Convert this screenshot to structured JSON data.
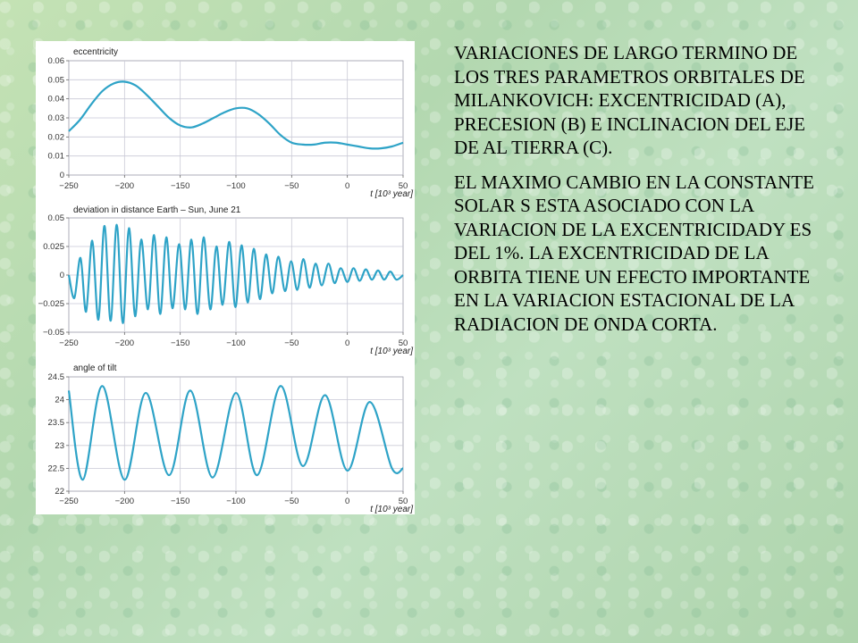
{
  "paragraphs": [
    "VARIACIONES DE LARGO TERMINO DE LOS TRES PARAMETROS ORBITALES DE MILANKOVICH: EXCENTRICIDAD (A), PRECESION (B) E INCLINACION DEL EJE DE AL TIERRA (C).",
    "EL MAXIMO CAMBIO EN LA CONSTANTE SOLAR S ESTA ASOCIADO CON LA VARIACION DE LA EXCENTRICIDADY ES DEL 1%. LA EXCENTRICIDAD DE LA ORBITA TIENE UN EFECTO IMPORTANTE EN LA VARIACION ESTACIONAL DE LA RADIACION DE ONDA CORTA."
  ],
  "chart_data": [
    {
      "type": "line",
      "title": "eccentricity",
      "xlabel": "t [10³ year]",
      "xlim": [
        -250,
        50
      ],
      "x_ticks": [
        "−250",
        "−200",
        "−150",
        "−100",
        "−50",
        "0",
        "50"
      ],
      "ylim": [
        0,
        0.06
      ],
      "y_ticks": [
        "0.06",
        "0.05",
        "0.04",
        "0.03",
        "0.02",
        "0.01",
        "0"
      ],
      "grid": true,
      "color": "#2ea3c7",
      "x": [
        -250,
        -240,
        -230,
        -220,
        -210,
        -200,
        -190,
        -180,
        -170,
        -160,
        -150,
        -140,
        -130,
        -120,
        -110,
        -100,
        -90,
        -80,
        -70,
        -60,
        -50,
        -40,
        -30,
        -20,
        -10,
        0,
        10,
        20,
        30,
        40,
        50
      ],
      "values": [
        0.023,
        0.029,
        0.037,
        0.044,
        0.048,
        0.049,
        0.047,
        0.042,
        0.036,
        0.03,
        0.026,
        0.025,
        0.027,
        0.03,
        0.033,
        0.035,
        0.035,
        0.032,
        0.027,
        0.021,
        0.017,
        0.016,
        0.016,
        0.017,
        0.017,
        0.016,
        0.015,
        0.014,
        0.014,
        0.015,
        0.017
      ]
    },
    {
      "type": "line",
      "title": "deviation in distance Earth – Sun, June 21",
      "xlabel": "t [10³ year]",
      "xlim": [
        -250,
        50
      ],
      "x_ticks": [
        "−250",
        "−200",
        "−150",
        "−100",
        "−50",
        "0",
        "50"
      ],
      "ylim": [
        -0.05,
        0.05
      ],
      "y_ticks": [
        "0.05",
        "0.025",
        "0",
        "−0.025",
        "−0.05"
      ],
      "grid": true,
      "color": "#2ea3c7",
      "x": [
        -250,
        -245,
        -239.5,
        -234.5,
        -229,
        -223.5,
        -218,
        -212.5,
        -207,
        -201.5,
        -196,
        -190.5,
        -185,
        -179,
        -173.5,
        -168,
        -162.5,
        -157,
        -151,
        -145.5,
        -140,
        -134.5,
        -129,
        -123,
        -117.5,
        -112,
        -106,
        -100.5,
        -95,
        -89.5,
        -84,
        -78.5,
        -73,
        -67.5,
        -62,
        -56,
        -50.5,
        -45,
        -39.5,
        -34,
        -28.5,
        -23,
        -17,
        -11.5,
        -6,
        0,
        5.5,
        11,
        16.5,
        22,
        27.5,
        33,
        38.5,
        44,
        50
      ],
      "values": [
        0,
        -0.02,
        0.015,
        -0.032,
        0.03,
        -0.039,
        0.043,
        -0.04,
        0.044,
        -0.042,
        0.041,
        -0.036,
        0.031,
        -0.03,
        0.035,
        -0.034,
        0.033,
        -0.029,
        0.027,
        -0.03,
        0.031,
        -0.034,
        0.033,
        -0.03,
        0.025,
        -0.026,
        0.029,
        -0.028,
        0.026,
        -0.024,
        0.023,
        -0.021,
        0.018,
        -0.016,
        0.016,
        -0.014,
        0.012,
        -0.013,
        0.014,
        -0.011,
        0.01,
        -0.009,
        0.01,
        -0.007,
        0.006,
        -0.006,
        0.006,
        -0.005,
        0.005,
        -0.004,
        0.004,
        -0.004,
        0.003,
        -0.004,
        0
      ]
    },
    {
      "type": "line",
      "title": "angle of tilt",
      "xlabel": "t [10³ year]",
      "xlim": [
        -250,
        50
      ],
      "x_ticks": [
        "−250",
        "−200",
        "−150",
        "−100",
        "−50",
        "0",
        "50"
      ],
      "ylim": [
        22,
        24.5
      ],
      "y_ticks": [
        "24.5",
        "24",
        "23.5",
        "23",
        "22.5",
        "22"
      ],
      "grid": true,
      "color": "#2ea3c7",
      "x": [
        -250,
        -237.5,
        -220,
        -200,
        -181,
        -160,
        -141,
        -121,
        -100,
        -81,
        -60,
        -40,
        -20,
        0,
        20,
        40,
        50
      ],
      "values": [
        24.2,
        22.25,
        24.3,
        22.25,
        24.15,
        22.35,
        24.2,
        22.3,
        24.15,
        22.35,
        24.3,
        22.55,
        24.1,
        22.45,
        23.95,
        22.5,
        22.5
      ]
    }
  ]
}
